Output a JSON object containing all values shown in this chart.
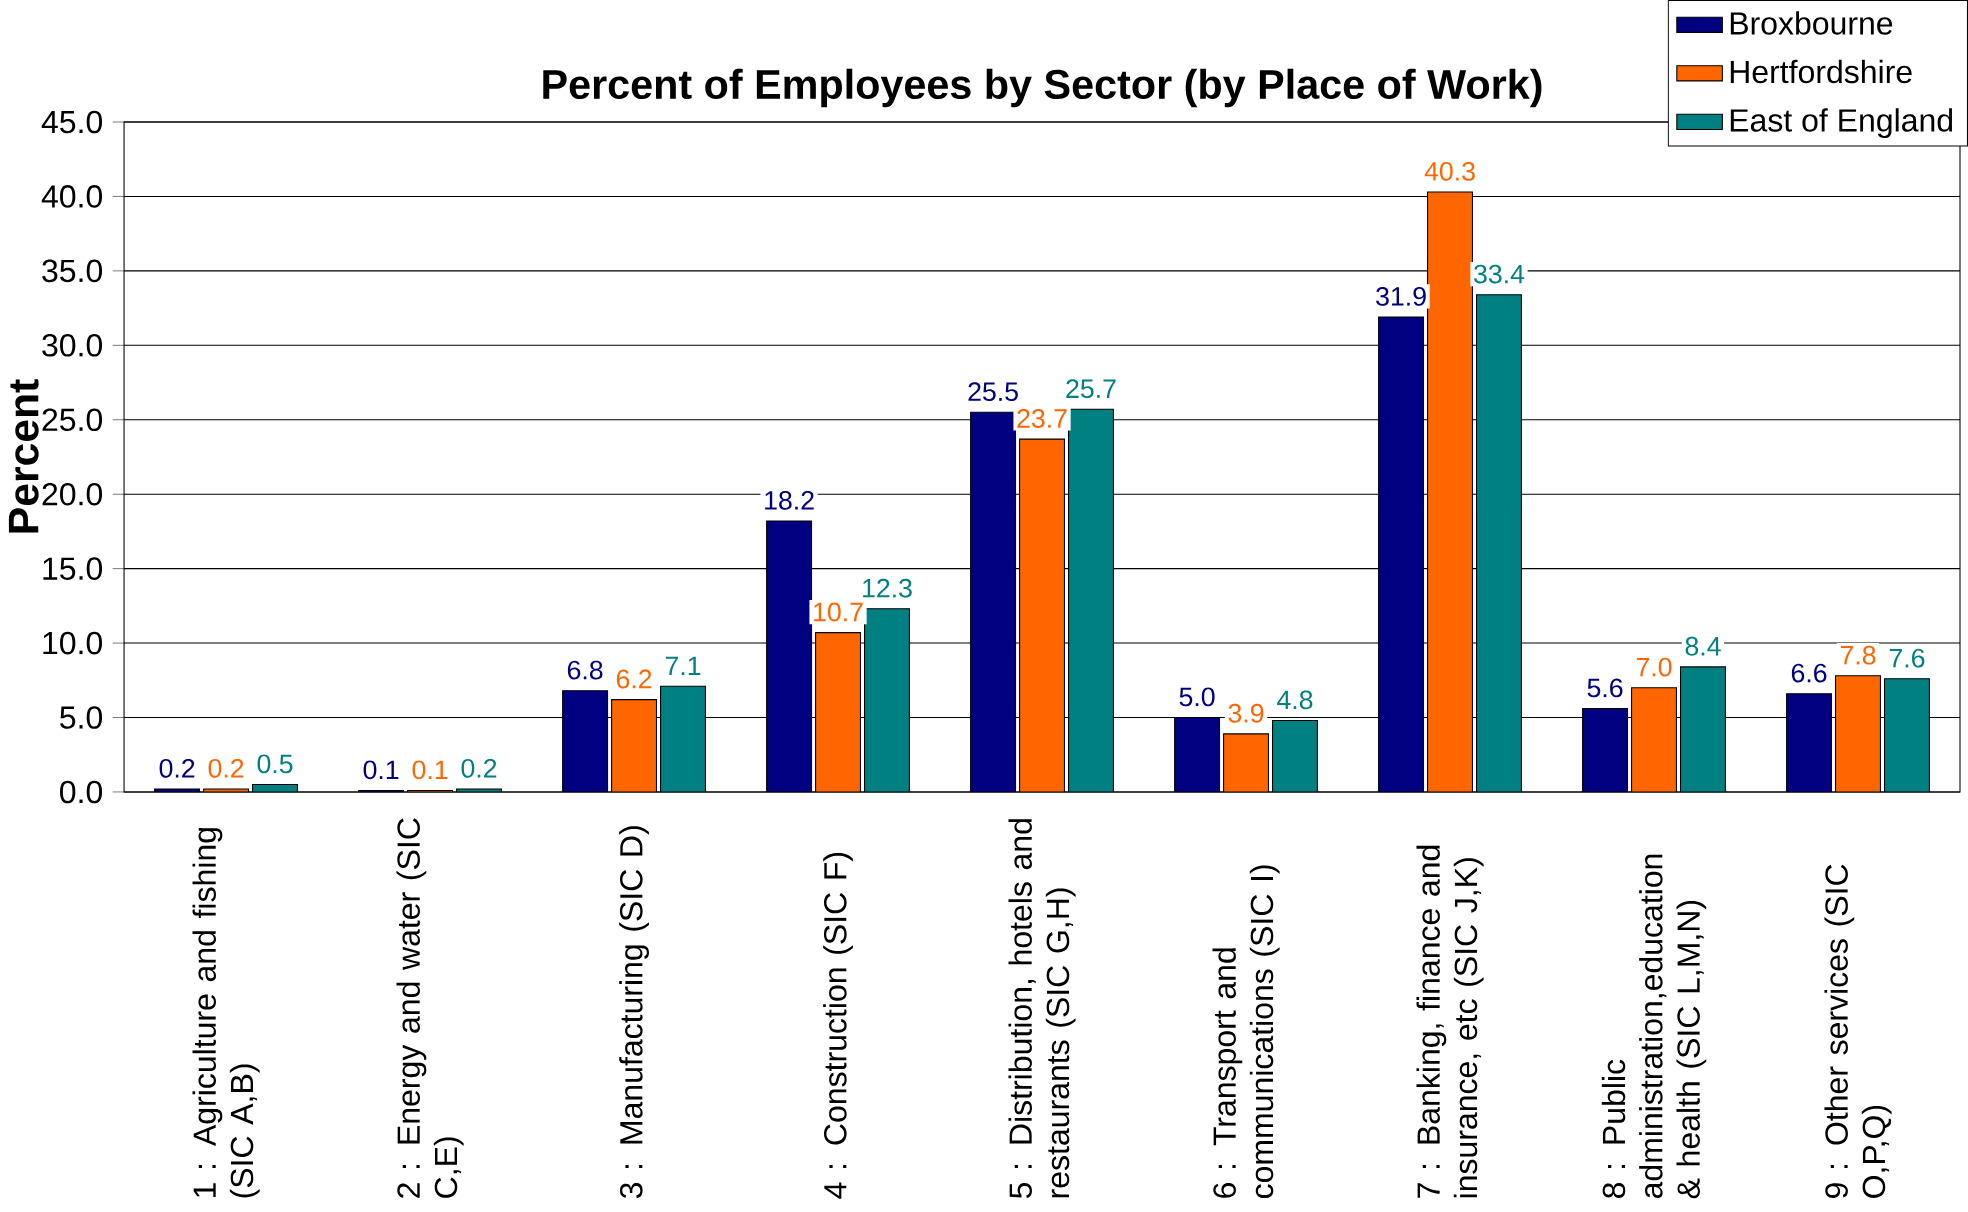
{
  "chart_data": {
    "type": "bar",
    "title": "Percent of Employees by Sector (by Place of Work)",
    "ylabel": "Percent",
    "categories": [
      "1 : Agriculture and fishing (SIC A,B)",
      "2 : Energy and water (SIC C,E)",
      "3 : Manufacturing (SIC D)",
      "4 : Construction (SIC F)",
      "5 : Distribution, hotels and restaurants (SIC G,H)",
      "6 : Transport and communications (SIC I)",
      "7 : Banking, finance and insurance, etc (SIC J,K)",
      "8 : Public administration,education & health (SIC L,M,N)",
      "9 : Other services (SIC O,P,Q)"
    ],
    "series": [
      {
        "name": "Broxbourne",
        "color": "#000080",
        "values": [
          0.2,
          0.1,
          6.8,
          18.2,
          25.5,
          5.0,
          31.9,
          5.6,
          6.6
        ],
        "value_labels": [
          "0.2",
          "0.1",
          "6.8",
          "18.2",
          "25.5",
          "5.0",
          "31.9",
          "5.6",
          "6.6"
        ]
      },
      {
        "name": "Hertfordshire",
        "color": "#ff6600",
        "values": [
          0.2,
          0.1,
          6.2,
          10.7,
          23.7,
          3.9,
          40.3,
          7.0,
          7.8
        ],
        "value_labels": [
          "0.2",
          "0.1",
          "6.2",
          "10.7",
          "23.7",
          "3.9",
          "40.3",
          "7.0",
          "7.8"
        ]
      },
      {
        "name": "East of England",
        "color": "#008080",
        "values": [
          0.5,
          0.2,
          7.1,
          12.3,
          25.7,
          4.8,
          33.4,
          8.4,
          7.6
        ],
        "value_labels": [
          "0.5",
          "0.2",
          "7.1",
          "12.3",
          "25.7",
          "4.8",
          "33.4",
          "8.4",
          "7.6"
        ]
      }
    ],
    "ylim": [
      0,
      45
    ],
    "yticks": [
      {
        "value": 0,
        "label": "0.0"
      },
      {
        "value": 5,
        "label": "5.0"
      },
      {
        "value": 10,
        "label": "10.0"
      },
      {
        "value": 15,
        "label": "15.0"
      },
      {
        "value": 20,
        "label": "20.0"
      },
      {
        "value": 25,
        "label": "25.0"
      },
      {
        "value": 30,
        "label": "30.0"
      },
      {
        "value": 35,
        "label": "35.0"
      },
      {
        "value": 40,
        "label": "40.0"
      },
      {
        "value": 45,
        "label": "45.0"
      }
    ],
    "grid": "y",
    "legend": "top right"
  }
}
